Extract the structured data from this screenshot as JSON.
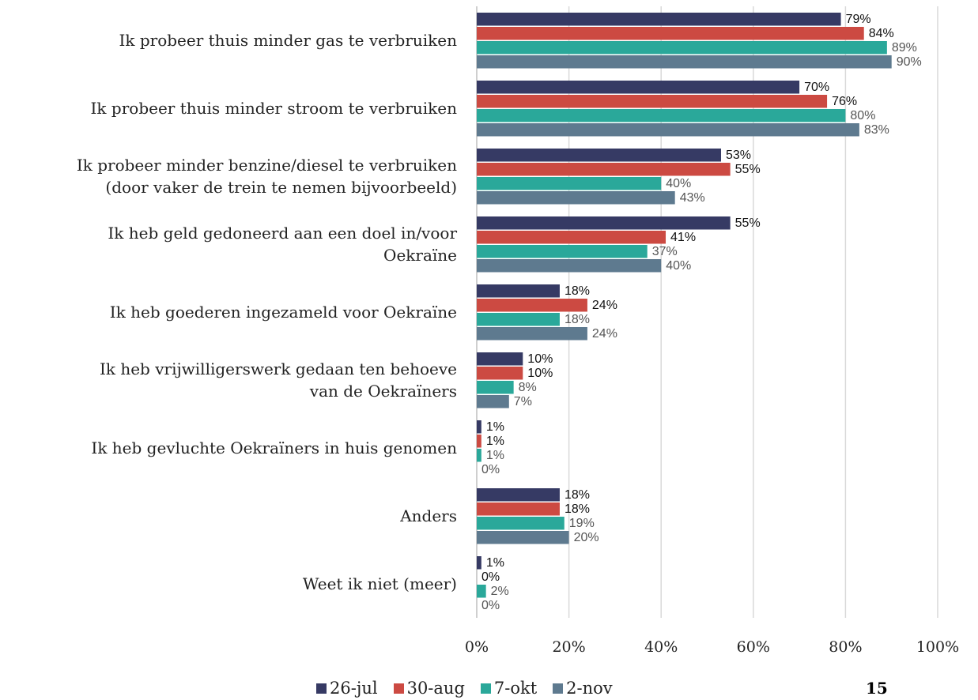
{
  "chart_data": {
    "type": "barh",
    "categories": [
      "Ik probeer thuis minder gas te verbruiken",
      "Ik probeer thuis minder stroom te verbruiken",
      "Ik probeer minder benzine/diesel te verbruiken\n(door vaker de trein te nemen bijvoorbeeld)",
      "Ik heb geld gedoneerd aan een doel in/voor\nOekraïne",
      "Ik heb goederen ingezameld voor Oekraïne",
      "Ik heb vrijwilligerswerk gedaan ten behoeve\nvan de Oekraïners",
      "Ik heb gevluchte Oekraïners in huis genomen",
      "Anders",
      "Weet ik niet (meer)"
    ],
    "series": [
      {
        "name": "26-jul",
        "color": "#363a64",
        "values": [
          79,
          70,
          53,
          55,
          18,
          10,
          1,
          18,
          1
        ],
        "value_labels": [
          "79%",
          "70%",
          "53%",
          "55%",
          "18%",
          "10%",
          "1%",
          "18%",
          "1%"
        ]
      },
      {
        "name": "30-aug",
        "color": "#cc4a42",
        "values": [
          84,
          76,
          55,
          41,
          24,
          10,
          1,
          18,
          0
        ],
        "value_labels": [
          "84%",
          "76%",
          "55%",
          "41%",
          "24%",
          "10%",
          "1%",
          "18%",
          "0%"
        ]
      },
      {
        "name": "7-okt",
        "color": "#2aa89a",
        "values": [
          89,
          80,
          40,
          37,
          18,
          8,
          1,
          19,
          2
        ],
        "value_labels": [
          "89%",
          "80%",
          "40%",
          "37%",
          "18%",
          "8%",
          "1%",
          "19%",
          "2%"
        ]
      },
      {
        "name": "2-nov",
        "color": "#5e7a8f",
        "values": [
          90,
          83,
          43,
          40,
          24,
          7,
          0,
          20,
          0
        ],
        "value_labels": [
          "90%",
          "83%",
          "43%",
          "40%",
          "24%",
          "7%",
          "0%",
          "20%",
          "0%"
        ]
      }
    ],
    "xlim": [
      0,
      100
    ],
    "xticks": [
      {
        "value": 0,
        "label": "0%"
      },
      {
        "value": 20,
        "label": "20%"
      },
      {
        "value": 40,
        "label": "40%"
      },
      {
        "value": 60,
        "label": "60%"
      },
      {
        "value": 80,
        "label": "80%"
      },
      {
        "value": 100,
        "label": "100%"
      }
    ],
    "grid": true
  },
  "page_number": "15"
}
